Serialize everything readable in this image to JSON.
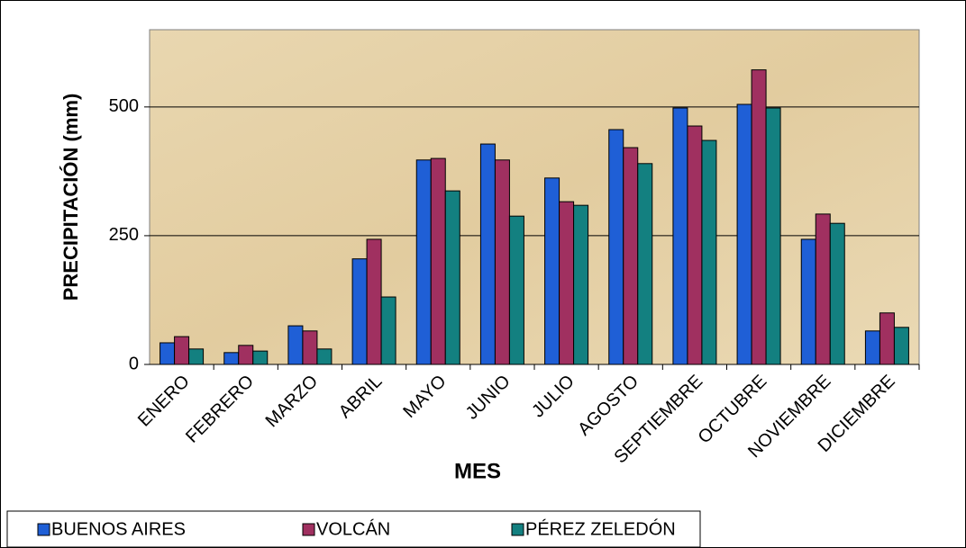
{
  "chart_data": {
    "type": "bar",
    "x_label": "MES",
    "y_label": "PRECIPITACIÓN (mm)",
    "categories": [
      "ENERO",
      "FEBRERO",
      "MARZO",
      "ABRIL",
      "MAYO",
      "JUNIO",
      "JULIO",
      "AGOSTO",
      "SEPTIEMBRE",
      "OCTUBRE",
      "NOVIEMBRE",
      "DICIEMBRE"
    ],
    "series": [
      {
        "name": "BUENOS AIRES",
        "color": "#1f5fd6",
        "values": [
          42,
          23,
          75,
          205,
          397,
          428,
          362,
          456,
          498,
          505,
          243,
          65
        ]
      },
      {
        "name": "VOLCÁN",
        "color": "#a03060",
        "values": [
          54,
          37,
          65,
          243,
          400,
          397,
          316,
          421,
          463,
          572,
          292,
          100
        ]
      },
      {
        "name": "PÉREZ ZELEDÓN",
        "color": "#138080",
        "values": [
          30,
          26,
          30,
          131,
          337,
          288,
          309,
          390,
          435,
          498,
          274,
          72
        ]
      }
    ],
    "ylim": [
      0,
      650
    ],
    "yticks": [
      0,
      250,
      500
    ],
    "grid": true,
    "legend": "bottom-left"
  }
}
